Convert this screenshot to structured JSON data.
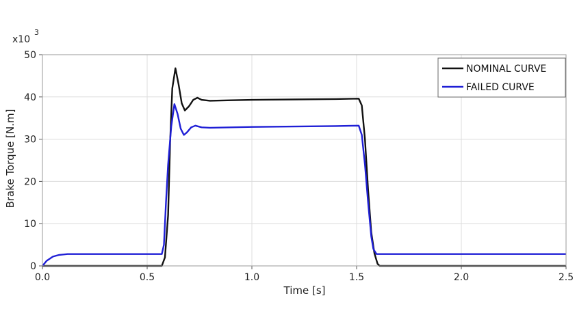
{
  "chart_data": {
    "type": "line",
    "title": "",
    "xlabel": "Time [s]",
    "ylabel": "Brake Torque [N.m]",
    "y_multiplier_label": "x10",
    "y_multiplier_exp": "3",
    "xlim": [
      0.0,
      2.5
    ],
    "ylim": [
      0,
      50
    ],
    "x_ticks": [
      0.0,
      0.5,
      1.0,
      1.5,
      2.0,
      2.5
    ],
    "x_tick_labels": [
      "0.0",
      "0.5",
      "1.0",
      "1.5",
      "2.0",
      "2.5"
    ],
    "y_ticks": [
      0,
      10,
      20,
      30,
      40,
      50
    ],
    "y_tick_labels": [
      "0",
      "10",
      "20",
      "30",
      "40",
      "50"
    ],
    "grid": true,
    "legend_position": "top-right",
    "series": [
      {
        "name": "NOMINAL CURVE",
        "color": "#111111",
        "points": [
          [
            0.0,
            0
          ],
          [
            0.57,
            0
          ],
          [
            0.585,
            2
          ],
          [
            0.6,
            12
          ],
          [
            0.61,
            30
          ],
          [
            0.62,
            42
          ],
          [
            0.635,
            46.8
          ],
          [
            0.65,
            43
          ],
          [
            0.665,
            38.5
          ],
          [
            0.68,
            36.8
          ],
          [
            0.7,
            37.8
          ],
          [
            0.72,
            39.3
          ],
          [
            0.74,
            39.8
          ],
          [
            0.76,
            39.3
          ],
          [
            0.8,
            39.1
          ],
          [
            0.9,
            39.2
          ],
          [
            1.0,
            39.3
          ],
          [
            1.2,
            39.4
          ],
          [
            1.4,
            39.5
          ],
          [
            1.51,
            39.6
          ],
          [
            1.525,
            38
          ],
          [
            1.54,
            30
          ],
          [
            1.555,
            18
          ],
          [
            1.57,
            8
          ],
          [
            1.585,
            3
          ],
          [
            1.6,
            0.5
          ],
          [
            1.61,
            0
          ],
          [
            2.5,
            0
          ]
        ]
      },
      {
        "name": "FAILED CURVE",
        "color": "#1f1fd6",
        "points": [
          [
            0.0,
            0
          ],
          [
            0.02,
            1.2
          ],
          [
            0.05,
            2.2
          ],
          [
            0.08,
            2.6
          ],
          [
            0.12,
            2.8
          ],
          [
            0.57,
            2.8
          ],
          [
            0.58,
            5
          ],
          [
            0.59,
            15
          ],
          [
            0.6,
            24
          ],
          [
            0.615,
            33
          ],
          [
            0.63,
            38.3
          ],
          [
            0.645,
            36
          ],
          [
            0.66,
            32.5
          ],
          [
            0.675,
            31
          ],
          [
            0.69,
            31.6
          ],
          [
            0.71,
            32.8
          ],
          [
            0.73,
            33.2
          ],
          [
            0.76,
            32.8
          ],
          [
            0.8,
            32.7
          ],
          [
            1.0,
            32.9
          ],
          [
            1.2,
            33.0
          ],
          [
            1.4,
            33.1
          ],
          [
            1.51,
            33.2
          ],
          [
            1.525,
            31
          ],
          [
            1.54,
            24
          ],
          [
            1.555,
            15
          ],
          [
            1.57,
            7
          ],
          [
            1.58,
            4
          ],
          [
            1.595,
            2.8
          ],
          [
            2.5,
            2.8
          ]
        ]
      }
    ]
  }
}
